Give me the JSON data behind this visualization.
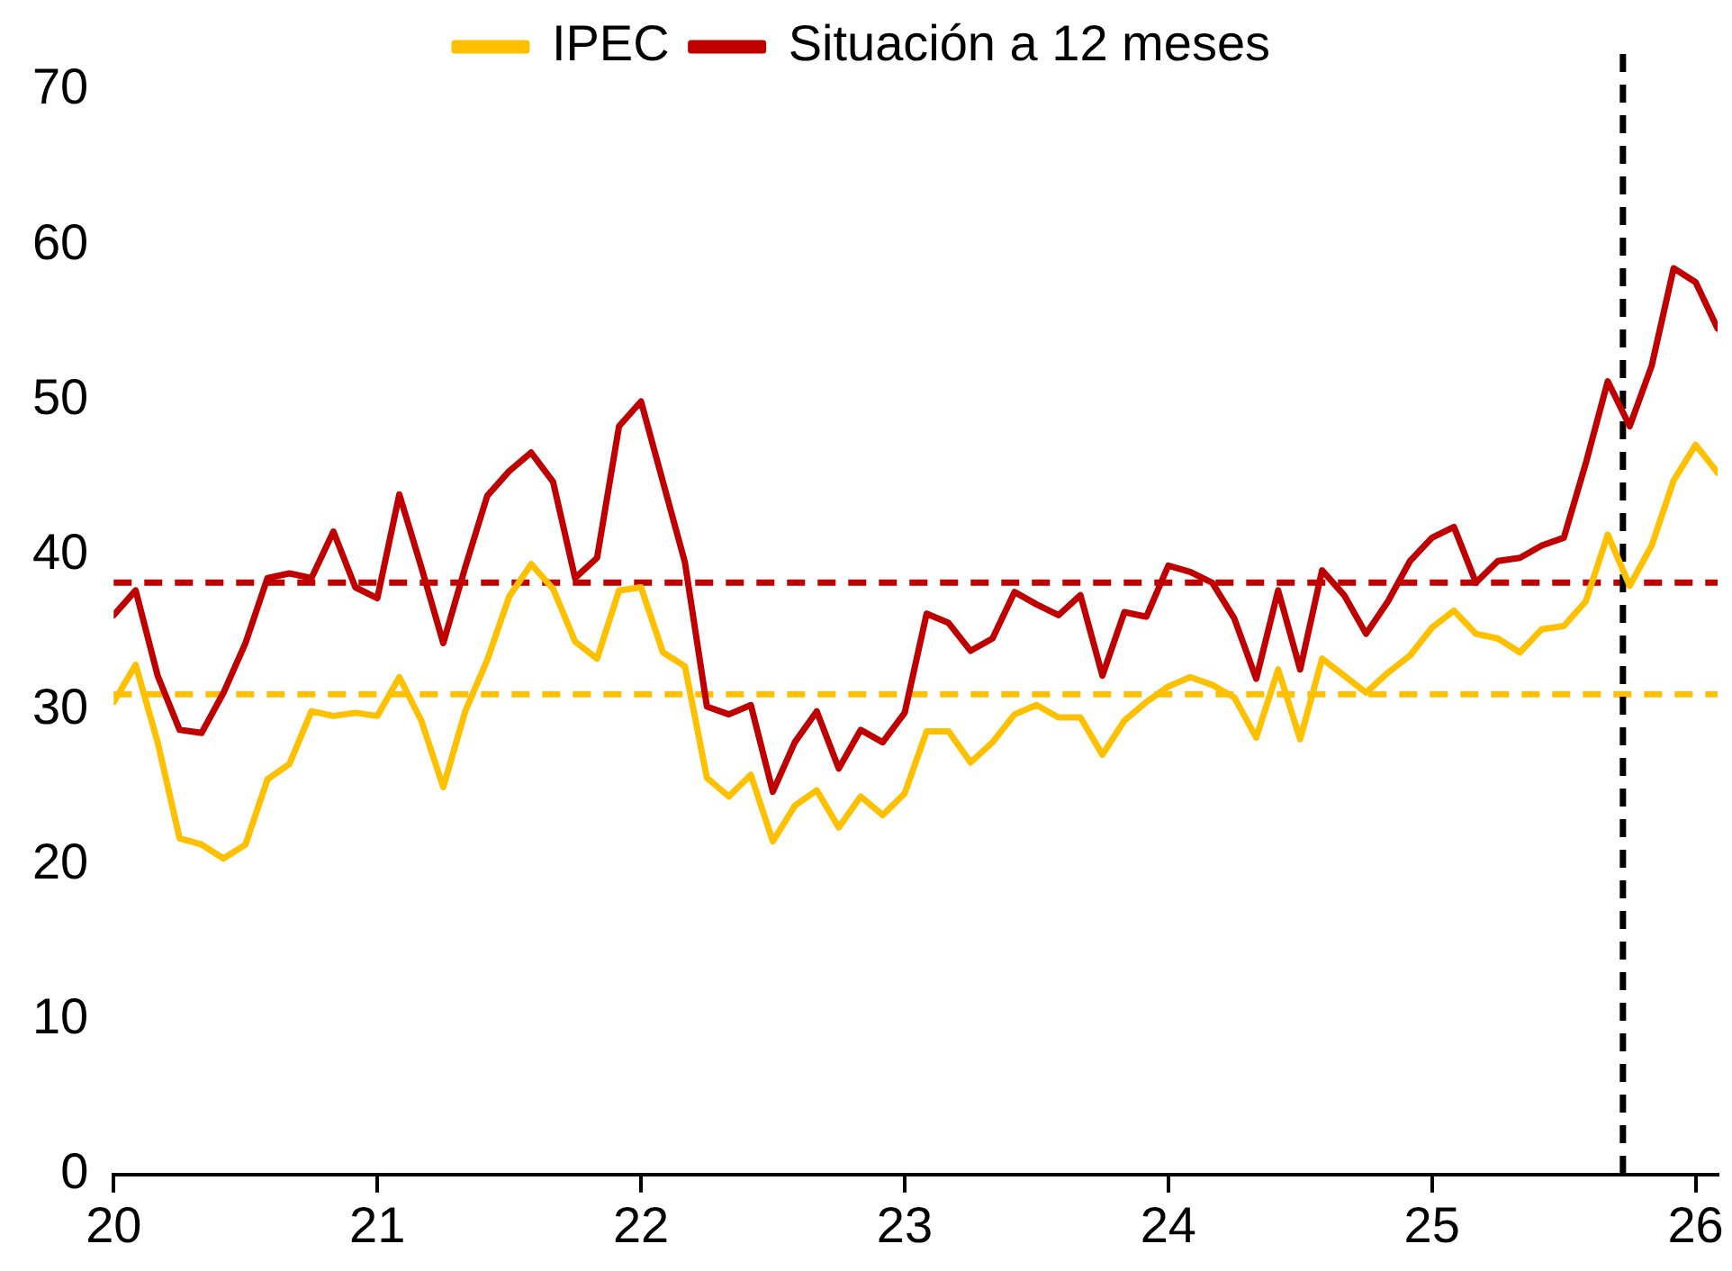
{
  "chart_data": {
    "type": "line",
    "xlim": [
      "2020-01",
      "2026-02"
    ],
    "xticks": [
      {
        "value": "2020-01",
        "label": "20"
      },
      {
        "value": "2021-01",
        "label": "21"
      },
      {
        "value": "2022-01",
        "label": "22"
      },
      {
        "value": "2023-01",
        "label": "23"
      },
      {
        "value": "2024-01",
        "label": "24"
      },
      {
        "value": "2025-01",
        "label": "25"
      },
      {
        "value": "2026-01",
        "label": "26"
      }
    ],
    "ylim": [
      0,
      70
    ],
    "yticks": [
      0,
      10,
      20,
      30,
      40,
      50,
      60,
      70
    ],
    "x": [
      "2020-01",
      "2020-02",
      "2020-03",
      "2020-04",
      "2020-05",
      "2020-06",
      "2020-07",
      "2020-08",
      "2020-09",
      "2020-10",
      "2020-11",
      "2020-12",
      "2021-01",
      "2021-02",
      "2021-03",
      "2021-04",
      "2021-05",
      "2021-06",
      "2021-07",
      "2021-08",
      "2021-09",
      "2021-10",
      "2021-11",
      "2021-12",
      "2022-01",
      "2022-02",
      "2022-03",
      "2022-04",
      "2022-05",
      "2022-06",
      "2022-07",
      "2022-08",
      "2022-09",
      "2022-10",
      "2022-11",
      "2022-12",
      "2023-01",
      "2023-02",
      "2023-03",
      "2023-04",
      "2023-05",
      "2023-06",
      "2023-07",
      "2023-08",
      "2023-09",
      "2023-10",
      "2023-11",
      "2023-12",
      "2024-01",
      "2024-02",
      "2024-03",
      "2024-04",
      "2024-05",
      "2024-06",
      "2024-07",
      "2024-08",
      "2024-09",
      "2024-10",
      "2024-11",
      "2024-12",
      "2025-01",
      "2025-02",
      "2025-03",
      "2025-04",
      "2025-05",
      "2025-06",
      "2025-07",
      "2025-08",
      "2025-09",
      "2025-10",
      "2025-11",
      "2025-12",
      "2026-01",
      "2026-02"
    ],
    "series": [
      {
        "name": "IPEC",
        "color": "#ffc000",
        "values": [
          30.5,
          32.9,
          27.9,
          21.7,
          21.3,
          20.4,
          21.3,
          25.5,
          26.5,
          29.9,
          29.6,
          29.8,
          29.6,
          32.1,
          29.3,
          25.0,
          29.9,
          33.2,
          37.3,
          39.4,
          37.8,
          34.4,
          33.3,
          37.7,
          37.9,
          33.7,
          32.8,
          25.6,
          24.4,
          25.8,
          21.5,
          23.8,
          24.8,
          22.4,
          24.4,
          23.2,
          24.6,
          28.6,
          28.6,
          26.6,
          27.9,
          29.7,
          30.3,
          29.5,
          29.5,
          27.1,
          29.3,
          30.5,
          31.5,
          32.1,
          31.6,
          30.8,
          28.2,
          32.6,
          28.1,
          33.3,
          32.2,
          31.1,
          32.4,
          33.5,
          35.3,
          36.4,
          34.9,
          34.6,
          33.7,
          35.2,
          35.4,
          37.0,
          41.3,
          38.0,
          40.6,
          44.8,
          47.1,
          45.3
        ]
      },
      {
        "name": "Situación a 12 meses",
        "color": "#c00000",
        "values": [
          36.1,
          37.7,
          32.2,
          28.7,
          28.5,
          31.1,
          34.3,
          38.5,
          38.8,
          38.5,
          41.5,
          37.9,
          37.2,
          43.9,
          39.2,
          34.3,
          39.2,
          43.8,
          45.4,
          46.6,
          44.7,
          38.5,
          39.8,
          48.3,
          49.9,
          44.7,
          39.5,
          30.2,
          29.7,
          30.3,
          24.7,
          27.9,
          29.9,
          26.2,
          28.7,
          27.9,
          29.8,
          36.2,
          35.6,
          33.8,
          34.6,
          37.6,
          36.8,
          36.1,
          37.4,
          32.2,
          36.3,
          36.0,
          39.3,
          38.9,
          38.2,
          35.9,
          32.0,
          37.7,
          32.6,
          39.0,
          37.4,
          34.9,
          37.0,
          39.6,
          41.1,
          41.8,
          38.2,
          39.6,
          39.8,
          40.6,
          41.1,
          45.9,
          51.2,
          48.3,
          52.2,
          58.5,
          57.6,
          54.6
        ]
      }
    ],
    "ref_lines": [
      {
        "axis": "y",
        "value": 38.2,
        "color": "#c00000",
        "line_style": "dashed"
      },
      {
        "axis": "y",
        "value": 31.0,
        "color": "#ffc000",
        "line_style": "dashed"
      },
      {
        "axis": "x",
        "value": "2025-09-22",
        "color": "#000000",
        "line_style": "dashed"
      }
    ],
    "legend": "top",
    "grid": false,
    "marker": "none",
    "line_style": "solid"
  }
}
